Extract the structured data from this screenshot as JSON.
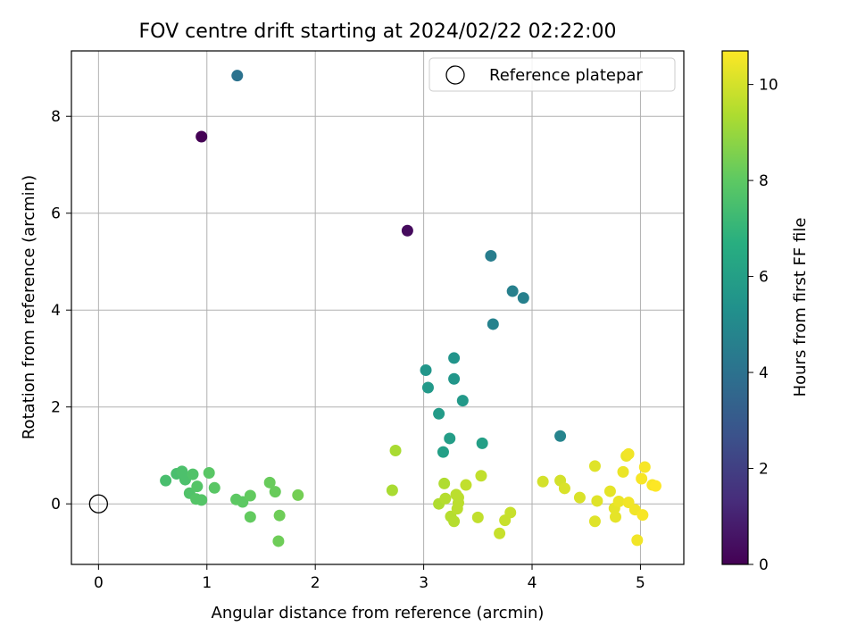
{
  "chart_data": {
    "type": "scatter",
    "title": "FOV centre drift starting at 2024/02/22 02:22:00",
    "xlabel": "Angular distance from reference (arcmin)",
    "ylabel": "Rotation from reference (arcmin)",
    "xlim": [
      -0.25,
      5.4
    ],
    "ylim": [
      -1.25,
      9.35
    ],
    "xticks": [
      "0",
      "1",
      "2",
      "3",
      "4",
      "5"
    ],
    "yticks": [
      "0",
      "2",
      "4",
      "6",
      "8"
    ],
    "grid": true,
    "legend": {
      "position": "top-right",
      "entries": [
        "Reference platepar"
      ]
    },
    "reference_point": {
      "x": 0,
      "y": 0
    },
    "colorbar": {
      "label": "Hours from first FF file",
      "range": [
        0,
        10.7
      ],
      "ticks": [
        "0",
        "2",
        "4",
        "6",
        "8",
        "10"
      ],
      "colormap": "viridis"
    },
    "points": [
      {
        "x": 0.95,
        "y": 7.58,
        "c": 0.0
      },
      {
        "x": 2.85,
        "y": 5.64,
        "c": 0.3
      },
      {
        "x": 1.28,
        "y": 8.84,
        "c": 4.0
      },
      {
        "x": 3.62,
        "y": 5.12,
        "c": 4.5
      },
      {
        "x": 3.82,
        "y": 4.39,
        "c": 4.6
      },
      {
        "x": 3.92,
        "y": 4.25,
        "c": 4.6
      },
      {
        "x": 3.64,
        "y": 3.71,
        "c": 4.7
      },
      {
        "x": 4.26,
        "y": 1.4,
        "c": 4.8
      },
      {
        "x": 3.28,
        "y": 3.01,
        "c": 5.5
      },
      {
        "x": 3.02,
        "y": 2.76,
        "c": 5.6
      },
      {
        "x": 3.28,
        "y": 2.58,
        "c": 5.6
      },
      {
        "x": 3.04,
        "y": 2.4,
        "c": 5.7
      },
      {
        "x": 3.36,
        "y": 2.13,
        "c": 5.7
      },
      {
        "x": 3.14,
        "y": 1.86,
        "c": 5.8
      },
      {
        "x": 3.24,
        "y": 1.35,
        "c": 5.9
      },
      {
        "x": 3.54,
        "y": 1.25,
        "c": 6.0
      },
      {
        "x": 3.18,
        "y": 1.07,
        "c": 6.0
      },
      {
        "x": 0.62,
        "y": 0.48,
        "c": 7.5
      },
      {
        "x": 0.72,
        "y": 0.62,
        "c": 7.5
      },
      {
        "x": 0.77,
        "y": 0.67,
        "c": 7.6
      },
      {
        "x": 0.8,
        "y": 0.5,
        "c": 7.6
      },
      {
        "x": 0.87,
        "y": 0.61,
        "c": 7.7
      },
      {
        "x": 0.84,
        "y": 0.22,
        "c": 7.7
      },
      {
        "x": 0.9,
        "y": 0.1,
        "c": 7.8
      },
      {
        "x": 0.91,
        "y": 0.36,
        "c": 7.8
      },
      {
        "x": 0.95,
        "y": 0.08,
        "c": 7.8
      },
      {
        "x": 1.02,
        "y": 0.64,
        "c": 7.9
      },
      {
        "x": 1.07,
        "y": 0.33,
        "c": 7.9
      },
      {
        "x": 1.27,
        "y": 0.09,
        "c": 8.0
      },
      {
        "x": 1.33,
        "y": 0.04,
        "c": 8.0
      },
      {
        "x": 1.4,
        "y": 0.17,
        "c": 8.1
      },
      {
        "x": 1.4,
        "y": -0.27,
        "c": 8.1
      },
      {
        "x": 1.58,
        "y": 0.44,
        "c": 8.2
      },
      {
        "x": 1.63,
        "y": 0.25,
        "c": 8.2
      },
      {
        "x": 1.67,
        "y": -0.24,
        "c": 8.3
      },
      {
        "x": 1.66,
        "y": -0.77,
        "c": 8.3
      },
      {
        "x": 1.84,
        "y": 0.18,
        "c": 8.4
      },
      {
        "x": 2.74,
        "y": 1.1,
        "c": 9.3
      },
      {
        "x": 2.71,
        "y": 0.28,
        "c": 9.3
      },
      {
        "x": 3.14,
        "y": 0.0,
        "c": 9.4
      },
      {
        "x": 3.19,
        "y": 0.42,
        "c": 9.4
      },
      {
        "x": 3.2,
        "y": 0.11,
        "c": 9.5
      },
      {
        "x": 3.25,
        "y": -0.26,
        "c": 9.5
      },
      {
        "x": 3.28,
        "y": -0.36,
        "c": 9.5
      },
      {
        "x": 3.3,
        "y": 0.19,
        "c": 9.6
      },
      {
        "x": 3.31,
        "y": -0.1,
        "c": 9.6
      },
      {
        "x": 3.32,
        "y": 0.02,
        "c": 9.6
      },
      {
        "x": 3.32,
        "y": 0.13,
        "c": 9.6
      },
      {
        "x": 3.39,
        "y": 0.39,
        "c": 9.7
      },
      {
        "x": 3.5,
        "y": -0.28,
        "c": 9.7
      },
      {
        "x": 3.53,
        "y": 0.58,
        "c": 9.7
      },
      {
        "x": 3.7,
        "y": -0.61,
        "c": 9.8
      },
      {
        "x": 3.75,
        "y": -0.34,
        "c": 9.8
      },
      {
        "x": 3.8,
        "y": -0.18,
        "c": 9.8
      },
      {
        "x": 4.1,
        "y": 0.46,
        "c": 10.0
      },
      {
        "x": 4.26,
        "y": 0.48,
        "c": 10.0
      },
      {
        "x": 4.3,
        "y": 0.32,
        "c": 10.1
      },
      {
        "x": 4.44,
        "y": 0.13,
        "c": 10.1
      },
      {
        "x": 4.58,
        "y": 0.78,
        "c": 10.2
      },
      {
        "x": 4.58,
        "y": -0.36,
        "c": 10.2
      },
      {
        "x": 4.6,
        "y": 0.06,
        "c": 10.2
      },
      {
        "x": 4.72,
        "y": 0.26,
        "c": 10.3
      },
      {
        "x": 4.76,
        "y": -0.09,
        "c": 10.3
      },
      {
        "x": 4.77,
        "y": -0.27,
        "c": 10.3
      },
      {
        "x": 4.8,
        "y": 0.05,
        "c": 10.4
      },
      {
        "x": 4.84,
        "y": 0.66,
        "c": 10.4
      },
      {
        "x": 4.87,
        "y": 0.99,
        "c": 10.4
      },
      {
        "x": 4.89,
        "y": 1.03,
        "c": 10.5
      },
      {
        "x": 4.89,
        "y": 0.03,
        "c": 10.5
      },
      {
        "x": 4.95,
        "y": -0.12,
        "c": 10.5
      },
      {
        "x": 4.97,
        "y": -0.75,
        "c": 10.5
      },
      {
        "x": 5.01,
        "y": 0.52,
        "c": 10.6
      },
      {
        "x": 5.02,
        "y": -0.23,
        "c": 10.6
      },
      {
        "x": 5.04,
        "y": 0.76,
        "c": 10.6
      },
      {
        "x": 5.11,
        "y": 0.39,
        "c": 10.6
      },
      {
        "x": 5.14,
        "y": 0.37,
        "c": 10.7
      }
    ]
  }
}
